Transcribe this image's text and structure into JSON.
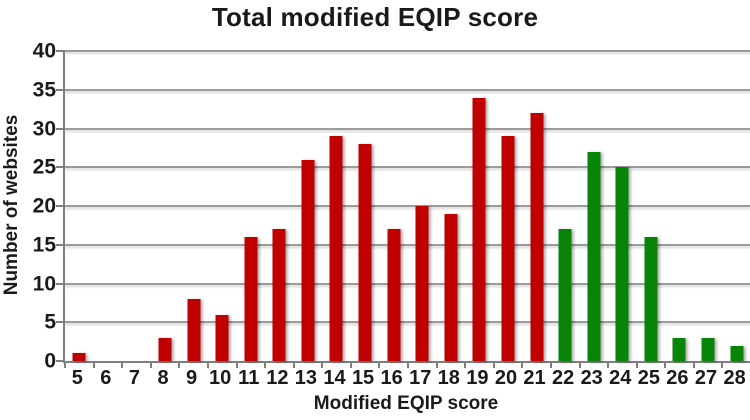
{
  "chart_data": {
    "type": "bar",
    "title": "Total modified EQIP score",
    "xlabel": "Modified EQIP score",
    "ylabel": "Number of websites",
    "categories": [
      5,
      6,
      7,
      8,
      9,
      10,
      11,
      12,
      13,
      14,
      15,
      16,
      17,
      18,
      19,
      20,
      21,
      22,
      23,
      24,
      25,
      26,
      27,
      28
    ],
    "values": [
      1,
      0,
      0,
      3,
      8,
      6,
      16,
      17,
      26,
      29,
      28,
      17,
      20,
      19,
      34,
      29,
      32,
      17,
      27,
      25,
      16,
      3,
      3,
      2
    ],
    "bar_colors": [
      "#c00000",
      "#c00000",
      "#c00000",
      "#c00000",
      "#c00000",
      "#c00000",
      "#c00000",
      "#c00000",
      "#c00000",
      "#c00000",
      "#c00000",
      "#c00000",
      "#c00000",
      "#c00000",
      "#c00000",
      "#c00000",
      "#c00000",
      "#088408",
      "#088408",
      "#088408",
      "#088408",
      "#088408",
      "#088408",
      "#088408"
    ],
    "palette": {
      "red": "#c00000",
      "green": "#088408"
    },
    "ylim": [
      0,
      40
    ],
    "yticks": [
      0,
      5,
      10,
      15,
      20,
      25,
      30,
      35,
      40
    ],
    "grid": true,
    "legend": false
  }
}
